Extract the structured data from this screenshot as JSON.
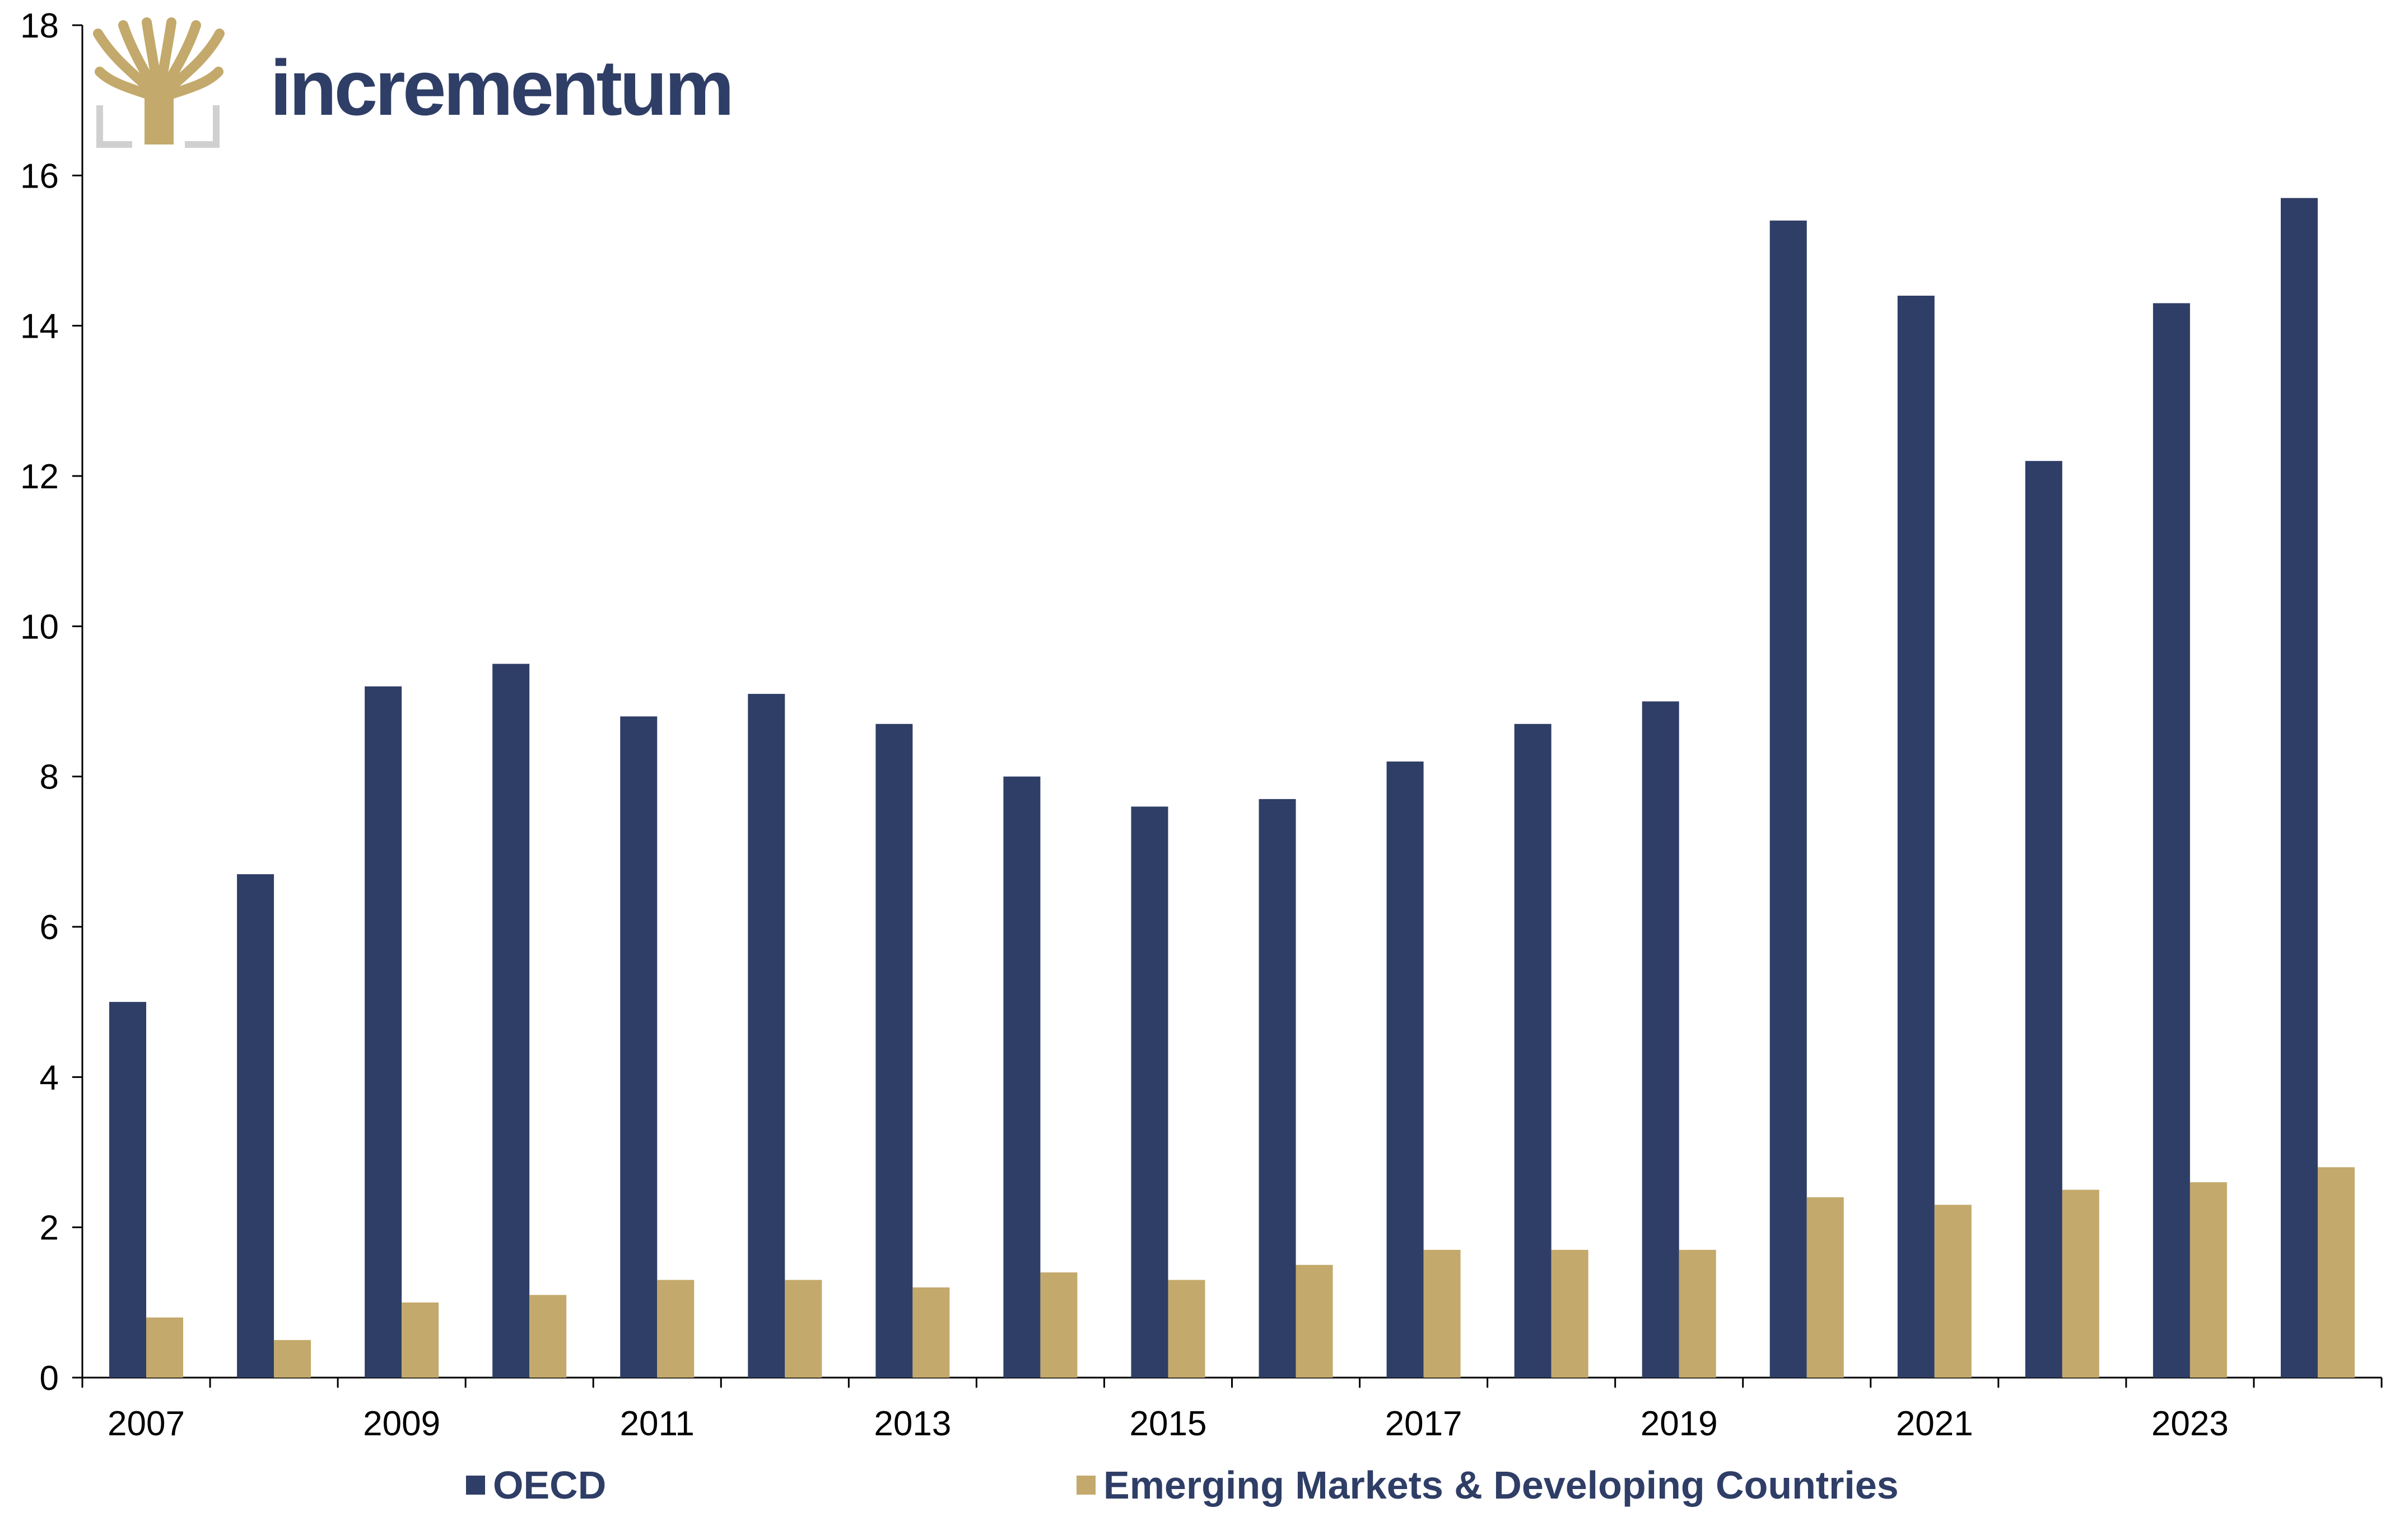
{
  "brand": {
    "name": "incrementum",
    "text_color": "#2f3e66",
    "accent_color": "#c3a96b",
    "frame_color": "#d0d0d0"
  },
  "chart_data": {
    "type": "bar",
    "title": "",
    "xlabel": "",
    "ylabel": "",
    "x": [
      2007,
      2008,
      2009,
      2010,
      2011,
      2012,
      2013,
      2014,
      2015,
      2016,
      2017,
      2018,
      2019,
      2020,
      2021,
      2022,
      2023,
      2024
    ],
    "x_tick_labels": [
      "2007",
      "2009",
      "2011",
      "2013",
      "2015",
      "2017",
      "2019",
      "2021",
      "2023"
    ],
    "series": [
      {
        "name": "OECD",
        "color": "#2f3e66",
        "values": [
          5.0,
          6.7,
          9.2,
          9.5,
          8.8,
          9.1,
          8.7,
          8.0,
          7.6,
          7.7,
          8.2,
          8.7,
          9.0,
          15.4,
          14.4,
          12.2,
          14.3,
          15.7
        ]
      },
      {
        "name": "Emerging Markets & Developing Countries",
        "color": "#c3a96b",
        "values": [
          0.8,
          0.5,
          1.0,
          1.1,
          1.3,
          1.3,
          1.2,
          1.4,
          1.3,
          1.5,
          1.7,
          1.7,
          1.7,
          2.4,
          2.3,
          2.5,
          2.6,
          2.8
        ]
      }
    ],
    "ylim": [
      0,
      18
    ],
    "y_ticks": [
      "0",
      "2",
      "4",
      "6",
      "8",
      "10",
      "12",
      "14",
      "16",
      "18"
    ],
    "grid": false,
    "legend_position": "bottom"
  }
}
